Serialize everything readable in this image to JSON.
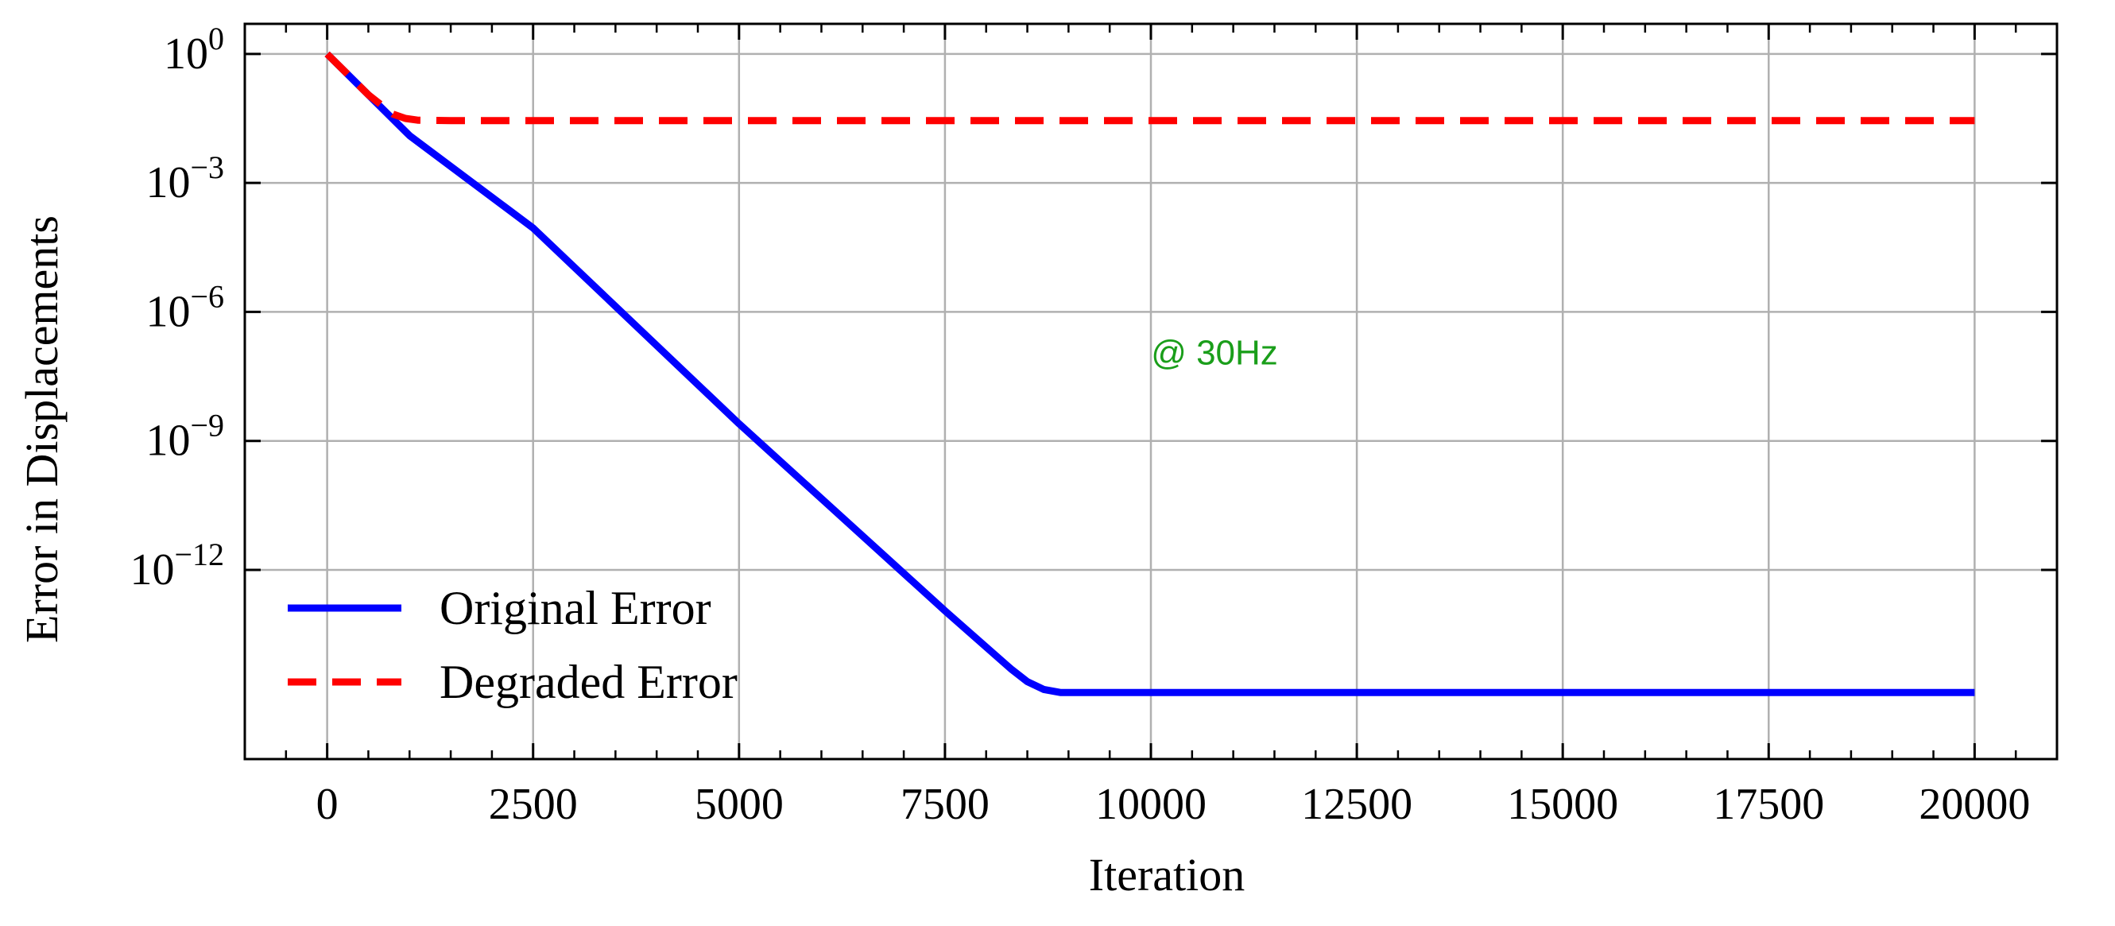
{
  "chart_data": {
    "type": "line",
    "title": "",
    "xlabel": "Iteration",
    "ylabel": "Error in Displacements",
    "xlim": [
      -1000,
      21000
    ],
    "ylim_log10": [
      -16.4,
      0.7
    ],
    "yscale": "log",
    "grid": true,
    "xticks": [
      0,
      2500,
      5000,
      7500,
      10000,
      12500,
      15000,
      17500,
      20000
    ],
    "xtick_labels": [
      "0",
      "2500",
      "5000",
      "7500",
      "10000",
      "12500",
      "15000",
      "17500",
      "20000"
    ],
    "yticks_log10": [
      0,
      -3,
      -6,
      -9,
      -12
    ],
    "ytick_labels": [
      {
        "base": "10",
        "exp": "0"
      },
      {
        "base": "10",
        "exp": "−3"
      },
      {
        "base": "10",
        "exp": "−6"
      },
      {
        "base": "10",
        "exp": "−9"
      },
      {
        "base": "10",
        "exp": "−12"
      }
    ],
    "legend_position": "lower-left",
    "annotation": {
      "text": "@ 30Hz",
      "x": 10000,
      "y_log10": -7,
      "color": "#1a9e1a"
    },
    "series": [
      {
        "name": "Original Error",
        "color": "#0000ff",
        "style": "solid",
        "x": [
          0,
          1000,
          2500,
          5000,
          7500,
          8300,
          8500,
          8700,
          8900,
          9500,
          20000
        ],
        "y_log10": [
          0,
          -1.9,
          -4.05,
          -8.6,
          -12.95,
          -14.3,
          -14.6,
          -14.78,
          -14.85,
          -14.85,
          -14.85
        ]
      },
      {
        "name": "Degraded Error",
        "color": "#ff0000",
        "style": "dashed",
        "x": [
          0,
          500,
          800,
          950,
          1100,
          1500,
          20000
        ],
        "y_log10": [
          0,
          -0.95,
          -1.4,
          -1.5,
          -1.54,
          -1.55,
          -1.55
        ]
      }
    ]
  }
}
